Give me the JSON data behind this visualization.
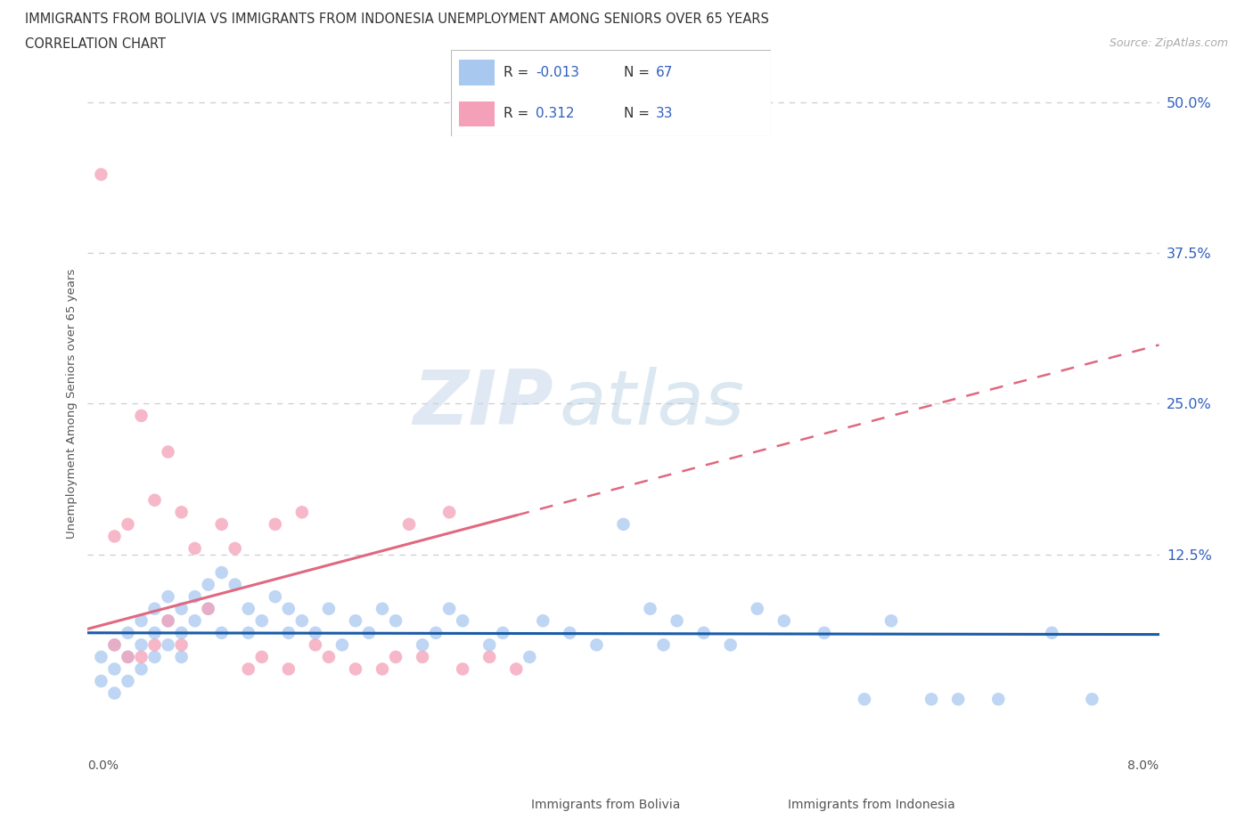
{
  "title_line1": "IMMIGRANTS FROM BOLIVIA VS IMMIGRANTS FROM INDONESIA UNEMPLOYMENT AMONG SENIORS OVER 65 YEARS",
  "title_line2": "CORRELATION CHART",
  "source_text": "Source: ZipAtlas.com",
  "ylabel": "Unemployment Among Seniors over 65 years",
  "ytick_labels": [
    "50.0%",
    "37.5%",
    "25.0%",
    "12.5%"
  ],
  "ytick_values": [
    0.5,
    0.375,
    0.25,
    0.125
  ],
  "xlim": [
    0.0,
    0.08
  ],
  "ylim": [
    -0.04,
    0.54
  ],
  "bolivia_color": "#a8c8f0",
  "indonesia_color": "#f4a0b8",
  "bolivia_line_color": "#1a5ca8",
  "indonesia_line_color": "#e06880",
  "bolivia_R": -0.013,
  "bolivia_N": 67,
  "indonesia_R": 0.312,
  "indonesia_N": 33,
  "bolivia_x": [
    0.001,
    0.001,
    0.002,
    0.002,
    0.002,
    0.003,
    0.003,
    0.003,
    0.004,
    0.004,
    0.004,
    0.005,
    0.005,
    0.005,
    0.006,
    0.006,
    0.006,
    0.007,
    0.007,
    0.007,
    0.008,
    0.008,
    0.009,
    0.009,
    0.01,
    0.01,
    0.011,
    0.012,
    0.012,
    0.013,
    0.014,
    0.015,
    0.015,
    0.016,
    0.017,
    0.018,
    0.019,
    0.02,
    0.021,
    0.022,
    0.023,
    0.025,
    0.026,
    0.027,
    0.028,
    0.03,
    0.031,
    0.033,
    0.034,
    0.036,
    0.038,
    0.04,
    0.042,
    0.043,
    0.044,
    0.046,
    0.048,
    0.05,
    0.052,
    0.055,
    0.058,
    0.06,
    0.063,
    0.065,
    0.068,
    0.072,
    0.075
  ],
  "bolivia_y": [
    0.04,
    0.02,
    0.05,
    0.03,
    0.01,
    0.06,
    0.04,
    0.02,
    0.07,
    0.05,
    0.03,
    0.08,
    0.06,
    0.04,
    0.09,
    0.07,
    0.05,
    0.08,
    0.06,
    0.04,
    0.09,
    0.07,
    0.1,
    0.08,
    0.11,
    0.06,
    0.1,
    0.08,
    0.06,
    0.07,
    0.09,
    0.08,
    0.06,
    0.07,
    0.06,
    0.08,
    0.05,
    0.07,
    0.06,
    0.08,
    0.07,
    0.05,
    0.06,
    0.08,
    0.07,
    0.05,
    0.06,
    0.04,
    0.07,
    0.06,
    0.05,
    0.15,
    0.08,
    0.05,
    0.07,
    0.06,
    0.05,
    0.08,
    0.07,
    0.06,
    0.005,
    0.07,
    0.005,
    0.005,
    0.005,
    0.06,
    0.005
  ],
  "indonesia_x": [
    0.001,
    0.002,
    0.002,
    0.003,
    0.003,
    0.004,
    0.004,
    0.005,
    0.005,
    0.006,
    0.006,
    0.007,
    0.007,
    0.008,
    0.009,
    0.01,
    0.011,
    0.012,
    0.013,
    0.014,
    0.015,
    0.016,
    0.017,
    0.018,
    0.02,
    0.022,
    0.023,
    0.024,
    0.025,
    0.027,
    0.028,
    0.03,
    0.032
  ],
  "indonesia_y": [
    0.44,
    0.14,
    0.05,
    0.15,
    0.04,
    0.24,
    0.04,
    0.17,
    0.05,
    0.21,
    0.07,
    0.16,
    0.05,
    0.13,
    0.08,
    0.15,
    0.13,
    0.03,
    0.04,
    0.15,
    0.03,
    0.16,
    0.05,
    0.04,
    0.03,
    0.03,
    0.04,
    0.15,
    0.04,
    0.16,
    0.03,
    0.04,
    0.03
  ],
  "watermark_zip": "ZIP",
  "watermark_atlas": "atlas",
  "legend_text_color": "#3060c0",
  "axis_text_color": "#555555",
  "grid_color": "#cccccc",
  "background_color": "#ffffff"
}
